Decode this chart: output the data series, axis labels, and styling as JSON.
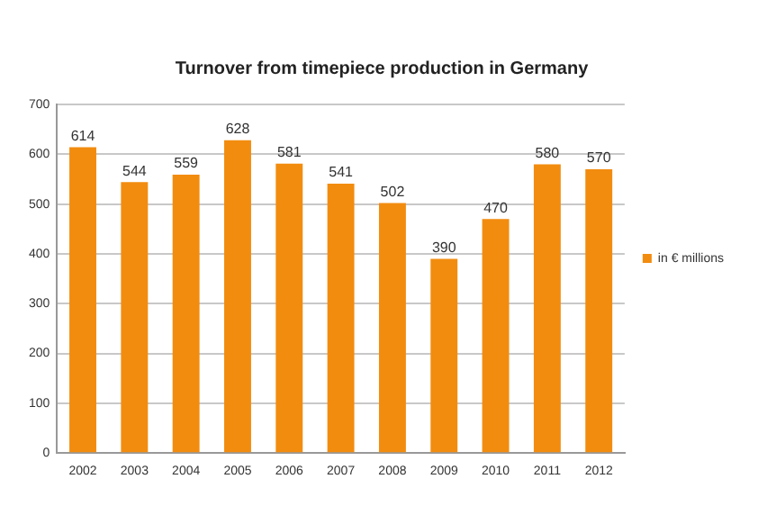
{
  "chart_data": {
    "type": "bar",
    "title": "Turnover from timepiece production in Germany",
    "categories": [
      "2002",
      "2003",
      "2004",
      "2005",
      "2006",
      "2007",
      "2008",
      "2009",
      "2010",
      "2011",
      "2012"
    ],
    "series": [
      {
        "name": "in € millions",
        "color": "#f28c0f",
        "values": [
          614,
          544,
          559,
          628,
          581,
          541,
          502,
          390,
          470,
          580,
          570
        ]
      }
    ],
    "ylim": [
      0,
      700
    ],
    "yticks": [
      0,
      100,
      200,
      300,
      400,
      500,
      600,
      700
    ],
    "grid": "y",
    "legend": "right",
    "data_labels": true
  }
}
